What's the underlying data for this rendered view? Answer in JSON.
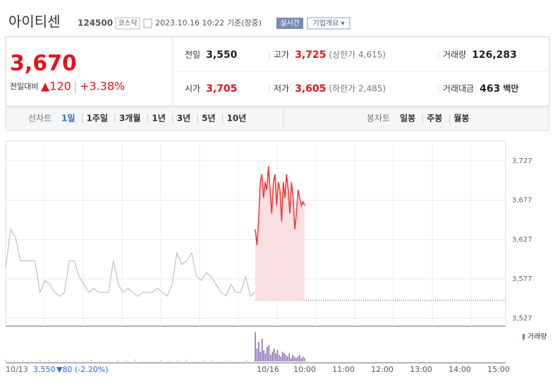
{
  "header": {
    "name": "아이티센",
    "code": "124500",
    "market": "코스닥",
    "datetime": "2023.10.16 10:22",
    "basis": "기준(장중)",
    "realtime": "실시간",
    "overview": "기업개요 ▾"
  },
  "summary": {
    "price": "3,670",
    "change_label": "전일대비",
    "change": "▲120",
    "change_pct": "+3.38%"
  },
  "stats": [
    {
      "label": "전일",
      "value": "3,550"
    },
    {
      "label": "고가",
      "value": "3,725",
      "note": "(상한가 4,615)"
    },
    {
      "label": "거래량",
      "value": "126,283"
    },
    {
      "label": "시가",
      "value": "3,705"
    },
    {
      "label": "저가",
      "value": "3,605",
      "note": "(하한가 2,485)"
    },
    {
      "label": "거래대금",
      "value": "463",
      "unit": "백만"
    }
  ],
  "tabs": {
    "line_label": "선차트",
    "line_items": [
      "1일",
      "1주일",
      "3개월",
      "1년",
      "3년",
      "5년",
      "10년"
    ],
    "candle_label": "봉차트",
    "candle_items": [
      "일봉",
      "주봉",
      "월봉"
    ]
  },
  "chart": {
    "type": "line",
    "ylim": [
      3517,
      3752
    ],
    "yticks": [
      {
        "value": 3727,
        "label": "3,727"
      },
      {
        "value": 3677,
        "label": "3,677"
      },
      {
        "value": 3627,
        "label": "3,627"
      },
      {
        "value": 3577,
        "label": "3,577"
      },
      {
        "value": 3527,
        "label": "3,527"
      }
    ],
    "base": 3550,
    "series": [
      {
        "name": "10/13",
        "color": "#b5b5b5",
        "values": [
          3590,
          3640,
          3630,
          3600,
          3600,
          3600,
          3600,
          3560,
          3575,
          3570,
          3560,
          3555,
          3560,
          3600,
          3600,
          3580,
          3570,
          3560,
          3565,
          3560,
          3560,
          3560,
          3600,
          3570,
          3560,
          3565,
          3560,
          3555,
          3560,
          3560,
          3560,
          3565,
          3560,
          3555,
          3570,
          3610,
          3595,
          3600,
          3610,
          3580,
          3575,
          3585,
          3580,
          3570,
          3560,
          3555,
          3570,
          3560,
          3560,
          3580,
          3555,
          3560
        ]
      },
      {
        "name": "10/16",
        "color": "#ee3333",
        "values": [
          3640,
          3620,
          3650,
          3700,
          3710,
          3680,
          3700,
          3690,
          3720,
          3690,
          3660,
          3700,
          3710,
          3670,
          3700,
          3690,
          3650,
          3700,
          3680,
          3710,
          3690,
          3660,
          3700,
          3680,
          3640,
          3660,
          3690,
          3680,
          3670,
          3675,
          3670
        ]
      }
    ],
    "volume_label": "거래량",
    "vlim": [
      0,
      100
    ],
    "volume": [
      {
        "color": "#c8c8c8",
        "values": [
          5,
          3,
          4,
          2,
          6,
          3,
          2,
          4,
          3,
          2,
          5,
          3,
          2,
          4,
          3,
          6,
          2,
          3,
          4,
          2,
          3,
          5,
          2,
          3,
          4,
          2,
          3,
          2,
          5,
          3
        ]
      },
      {
        "color": "#8a6cb8",
        "values": [
          90,
          40,
          60,
          30,
          70,
          35,
          25,
          45,
          50,
          20,
          30,
          40,
          25,
          35,
          20,
          15,
          30,
          25,
          20,
          15,
          25,
          10,
          20,
          15,
          10,
          15,
          20,
          10,
          15,
          10
        ]
      }
    ],
    "x_labels": [
      "10/16",
      "10:00",
      "11:00",
      "12:00",
      "13:00",
      "14:00",
      "15:00"
    ],
    "prev_summary": {
      "date": "10/13",
      "close": "3,550",
      "change": "▼80",
      "pct": "(-2.20%)"
    }
  }
}
